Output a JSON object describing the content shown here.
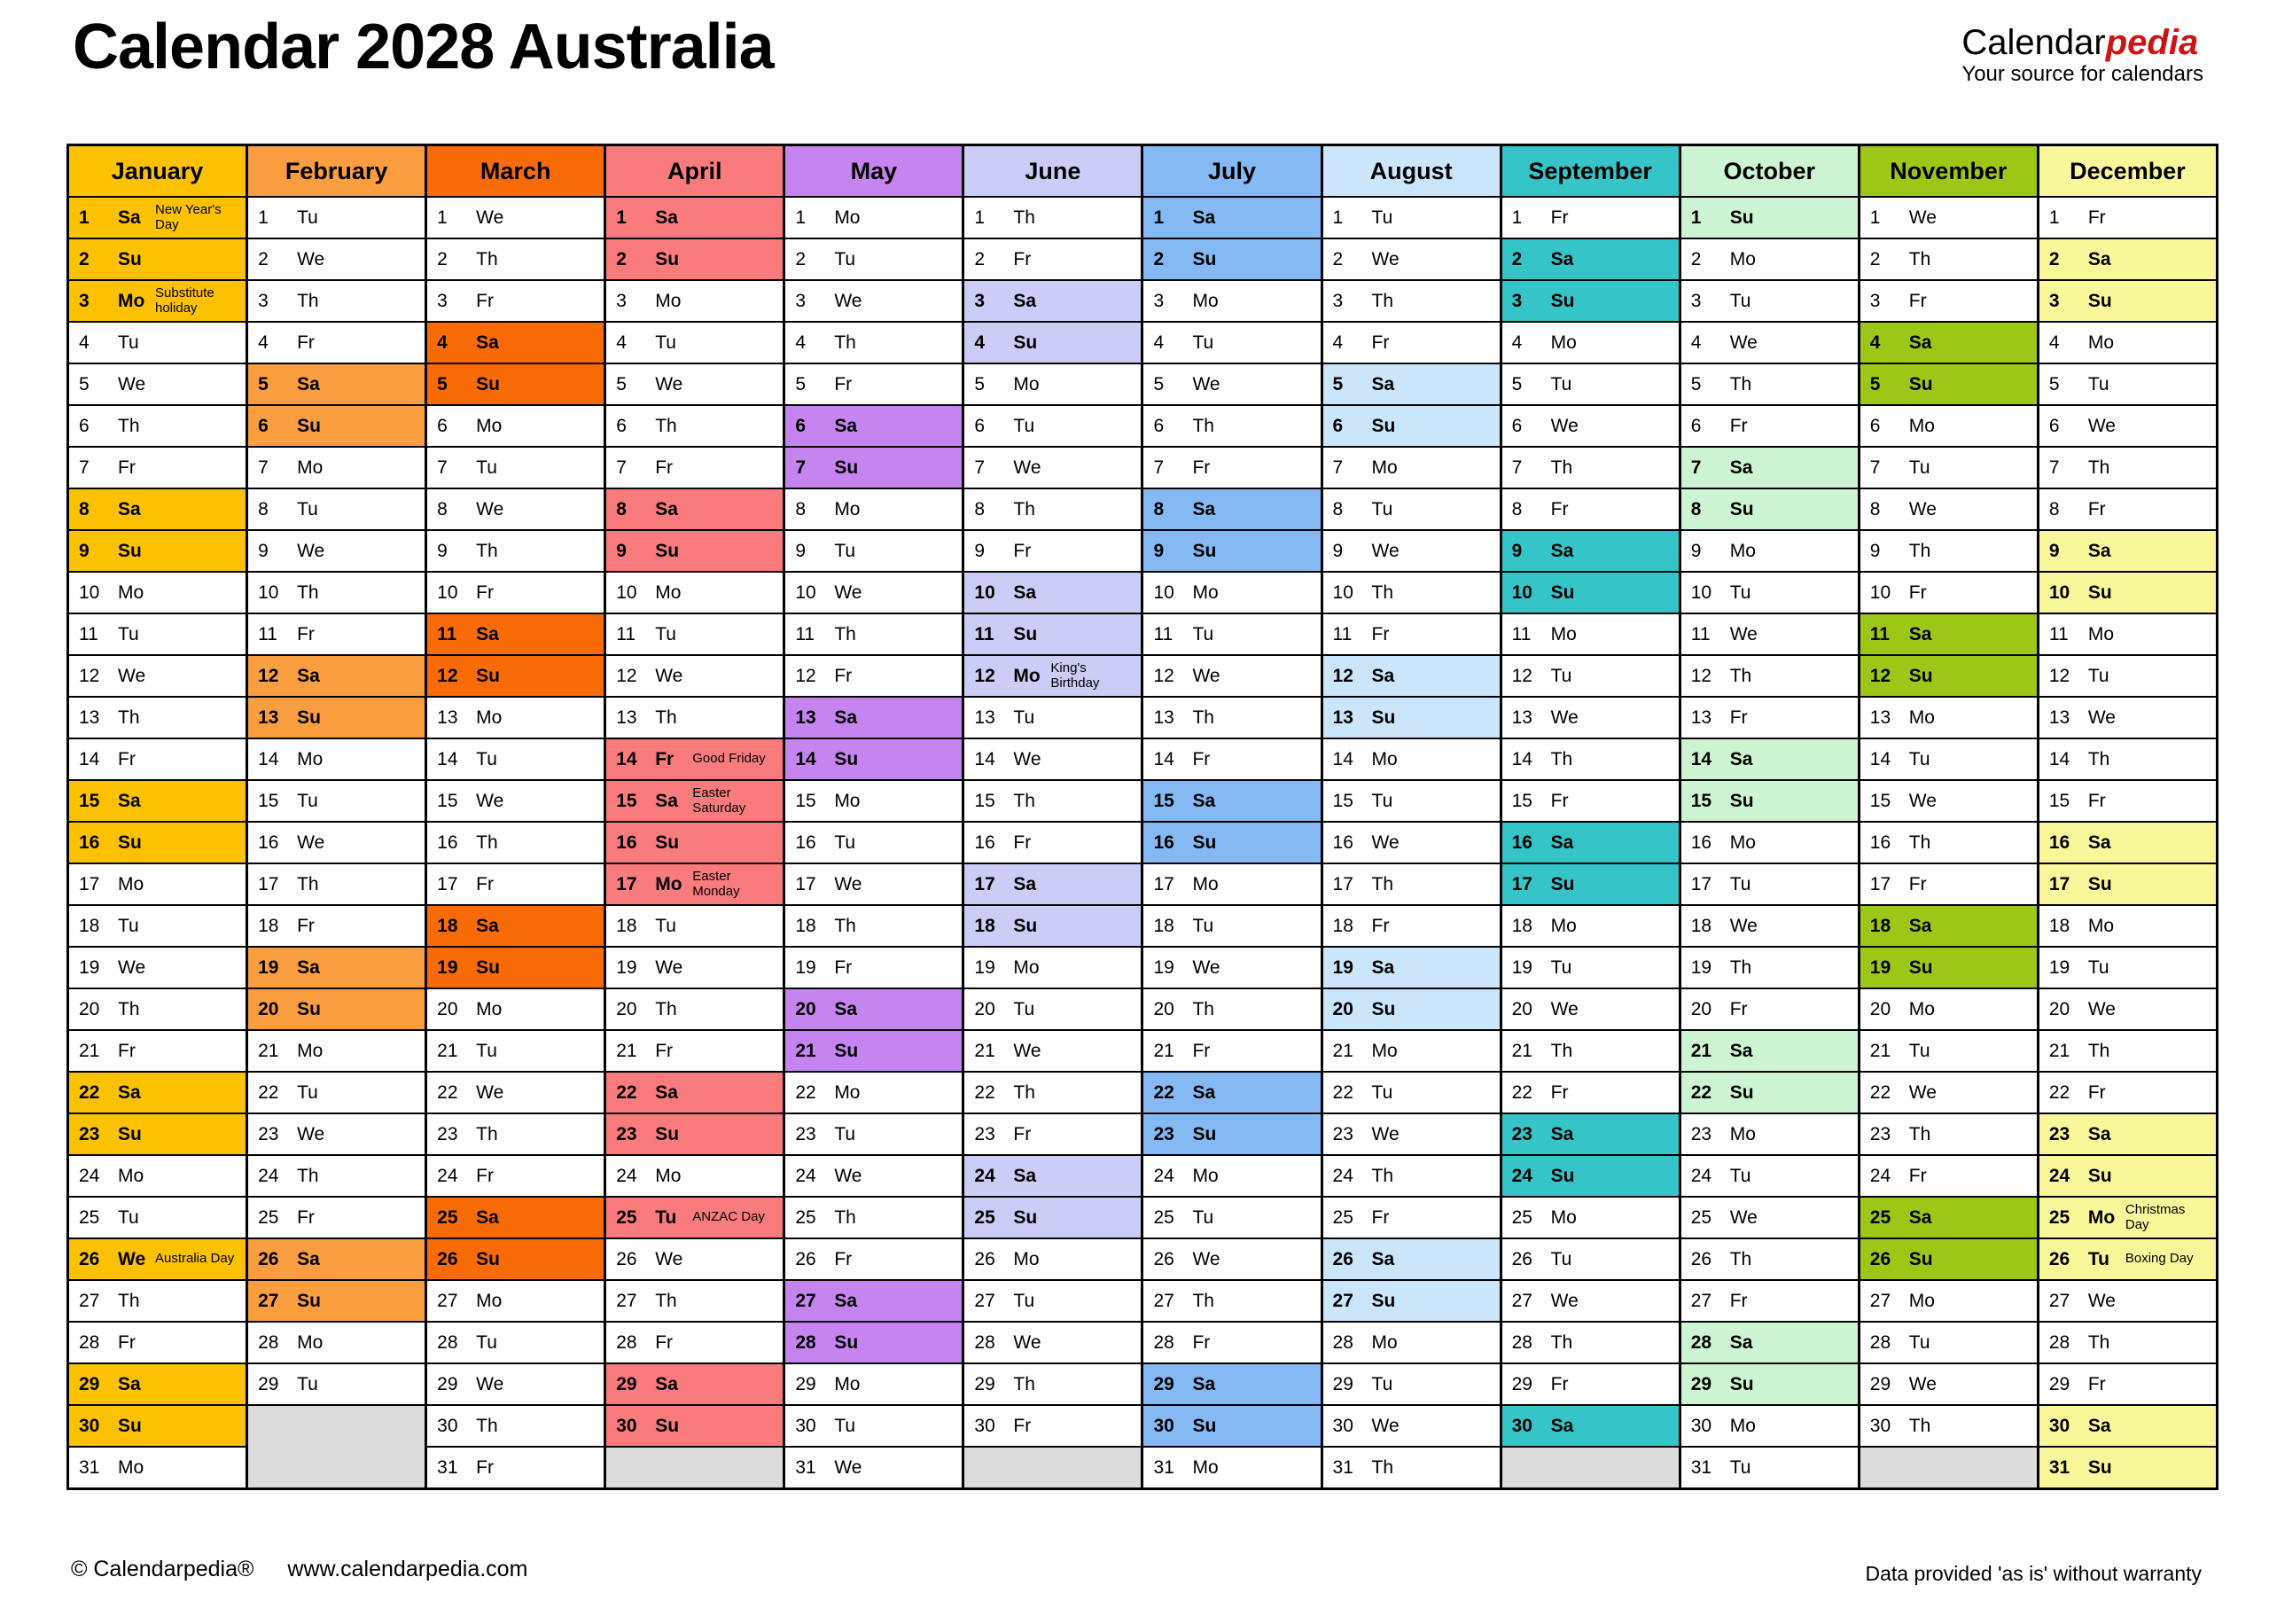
{
  "header": {
    "title": "Calendar 2028 Australia",
    "logo": {
      "part1": "Calendar",
      "part2": "pedia",
      "tagline": "Your source for calendars"
    }
  },
  "footer": {
    "copyright": "© Calendarpedia®",
    "website": "www.calendarpedia.com",
    "disclaimer": "Data provided 'as is' without warranty"
  },
  "colors": {
    "filler": "#DCDCDC",
    "grid": "#000000",
    "logo_red": "#CC1414",
    "weekday_cell": "#FFFFFF"
  },
  "months": [
    {
      "name": "January",
      "color": "#FCC101",
      "days": [
        [
          1,
          "Sa",
          "New Year's Day"
        ],
        [
          2,
          "Su"
        ],
        [
          3,
          "Mo",
          "Substitute holiday"
        ],
        [
          4,
          "Tu"
        ],
        [
          5,
          "We"
        ],
        [
          6,
          "Th"
        ],
        [
          7,
          "Fr"
        ],
        [
          8,
          "Sa"
        ],
        [
          9,
          "Su"
        ],
        [
          10,
          "Mo"
        ],
        [
          11,
          "Tu"
        ],
        [
          12,
          "We"
        ],
        [
          13,
          "Th"
        ],
        [
          14,
          "Fr"
        ],
        [
          15,
          "Sa"
        ],
        [
          16,
          "Su"
        ],
        [
          17,
          "Mo"
        ],
        [
          18,
          "Tu"
        ],
        [
          19,
          "We"
        ],
        [
          20,
          "Th"
        ],
        [
          21,
          "Fr"
        ],
        [
          22,
          "Sa"
        ],
        [
          23,
          "Su"
        ],
        [
          24,
          "Mo"
        ],
        [
          25,
          "Tu"
        ],
        [
          26,
          "We",
          "Australia Day"
        ],
        [
          27,
          "Th"
        ],
        [
          28,
          "Fr"
        ],
        [
          29,
          "Sa"
        ],
        [
          30,
          "Su"
        ],
        [
          31,
          "Mo"
        ]
      ]
    },
    {
      "name": "February",
      "color": "#FA9E40",
      "days": [
        [
          1,
          "Tu"
        ],
        [
          2,
          "We"
        ],
        [
          3,
          "Th"
        ],
        [
          4,
          "Fr"
        ],
        [
          5,
          "Sa"
        ],
        [
          6,
          "Su"
        ],
        [
          7,
          "Mo"
        ],
        [
          8,
          "Tu"
        ],
        [
          9,
          "We"
        ],
        [
          10,
          "Th"
        ],
        [
          11,
          "Fr"
        ],
        [
          12,
          "Sa"
        ],
        [
          13,
          "Su"
        ],
        [
          14,
          "Mo"
        ],
        [
          15,
          "Tu"
        ],
        [
          16,
          "We"
        ],
        [
          17,
          "Th"
        ],
        [
          18,
          "Fr"
        ],
        [
          19,
          "Sa"
        ],
        [
          20,
          "Su"
        ],
        [
          21,
          "Mo"
        ],
        [
          22,
          "Tu"
        ],
        [
          23,
          "We"
        ],
        [
          24,
          "Th"
        ],
        [
          25,
          "Fr"
        ],
        [
          26,
          "Sa"
        ],
        [
          27,
          "Su"
        ],
        [
          28,
          "Mo"
        ],
        [
          29,
          "Tu"
        ]
      ]
    },
    {
      "name": "March",
      "color": "#F96B07",
      "days": [
        [
          1,
          "We"
        ],
        [
          2,
          "Th"
        ],
        [
          3,
          "Fr"
        ],
        [
          4,
          "Sa"
        ],
        [
          5,
          "Su"
        ],
        [
          6,
          "Mo"
        ],
        [
          7,
          "Tu"
        ],
        [
          8,
          "We"
        ],
        [
          9,
          "Th"
        ],
        [
          10,
          "Fr"
        ],
        [
          11,
          "Sa"
        ],
        [
          12,
          "Su"
        ],
        [
          13,
          "Mo"
        ],
        [
          14,
          "Tu"
        ],
        [
          15,
          "We"
        ],
        [
          16,
          "Th"
        ],
        [
          17,
          "Fr"
        ],
        [
          18,
          "Sa"
        ],
        [
          19,
          "Su"
        ],
        [
          20,
          "Mo"
        ],
        [
          21,
          "Tu"
        ],
        [
          22,
          "We"
        ],
        [
          23,
          "Th"
        ],
        [
          24,
          "Fr"
        ],
        [
          25,
          "Sa"
        ],
        [
          26,
          "Su"
        ],
        [
          27,
          "Mo"
        ],
        [
          28,
          "Tu"
        ],
        [
          29,
          "We"
        ],
        [
          30,
          "Th"
        ],
        [
          31,
          "Fr"
        ]
      ]
    },
    {
      "name": "April",
      "color": "#FA7B7D",
      "days": [
        [
          1,
          "Sa"
        ],
        [
          2,
          "Su"
        ],
        [
          3,
          "Mo"
        ],
        [
          4,
          "Tu"
        ],
        [
          5,
          "We"
        ],
        [
          6,
          "Th"
        ],
        [
          7,
          "Fr"
        ],
        [
          8,
          "Sa"
        ],
        [
          9,
          "Su"
        ],
        [
          10,
          "Mo"
        ],
        [
          11,
          "Tu"
        ],
        [
          12,
          "We"
        ],
        [
          13,
          "Th"
        ],
        [
          14,
          "Fr",
          "Good Friday"
        ],
        [
          15,
          "Sa",
          "Easter Saturday"
        ],
        [
          16,
          "Su"
        ],
        [
          17,
          "Mo",
          "Easter Monday"
        ],
        [
          18,
          "Tu"
        ],
        [
          19,
          "We"
        ],
        [
          20,
          "Th"
        ],
        [
          21,
          "Fr"
        ],
        [
          22,
          "Sa"
        ],
        [
          23,
          "Su"
        ],
        [
          24,
          "Mo"
        ],
        [
          25,
          "Tu",
          "ANZAC Day"
        ],
        [
          26,
          "We"
        ],
        [
          27,
          "Th"
        ],
        [
          28,
          "Fr"
        ],
        [
          29,
          "Sa"
        ],
        [
          30,
          "Su"
        ]
      ]
    },
    {
      "name": "May",
      "color": "#C584F0",
      "days": [
        [
          1,
          "Mo"
        ],
        [
          2,
          "Tu"
        ],
        [
          3,
          "We"
        ],
        [
          4,
          "Th"
        ],
        [
          5,
          "Fr"
        ],
        [
          6,
          "Sa"
        ],
        [
          7,
          "Su"
        ],
        [
          8,
          "Mo"
        ],
        [
          9,
          "Tu"
        ],
        [
          10,
          "We"
        ],
        [
          11,
          "Th"
        ],
        [
          12,
          "Fr"
        ],
        [
          13,
          "Sa"
        ],
        [
          14,
          "Su"
        ],
        [
          15,
          "Mo"
        ],
        [
          16,
          "Tu"
        ],
        [
          17,
          "We"
        ],
        [
          18,
          "Th"
        ],
        [
          19,
          "Fr"
        ],
        [
          20,
          "Sa"
        ],
        [
          21,
          "Su"
        ],
        [
          22,
          "Mo"
        ],
        [
          23,
          "Tu"
        ],
        [
          24,
          "We"
        ],
        [
          25,
          "Th"
        ],
        [
          26,
          "Fr"
        ],
        [
          27,
          "Sa"
        ],
        [
          28,
          "Su"
        ],
        [
          29,
          "Mo"
        ],
        [
          30,
          "Tu"
        ],
        [
          31,
          "We"
        ]
      ]
    },
    {
      "name": "June",
      "color": "#CCCDF6",
      "days": [
        [
          1,
          "Th"
        ],
        [
          2,
          "Fr"
        ],
        [
          3,
          "Sa"
        ],
        [
          4,
          "Su"
        ],
        [
          5,
          "Mo"
        ],
        [
          6,
          "Tu"
        ],
        [
          7,
          "We"
        ],
        [
          8,
          "Th"
        ],
        [
          9,
          "Fr"
        ],
        [
          10,
          "Sa"
        ],
        [
          11,
          "Su"
        ],
        [
          12,
          "Mo",
          "King's Birthday"
        ],
        [
          13,
          "Tu"
        ],
        [
          14,
          "We"
        ],
        [
          15,
          "Th"
        ],
        [
          16,
          "Fr"
        ],
        [
          17,
          "Sa"
        ],
        [
          18,
          "Su"
        ],
        [
          19,
          "Mo"
        ],
        [
          20,
          "Tu"
        ],
        [
          21,
          "We"
        ],
        [
          22,
          "Th"
        ],
        [
          23,
          "Fr"
        ],
        [
          24,
          "Sa"
        ],
        [
          25,
          "Su"
        ],
        [
          26,
          "Mo"
        ],
        [
          27,
          "Tu"
        ],
        [
          28,
          "We"
        ],
        [
          29,
          "Th"
        ],
        [
          30,
          "Fr"
        ]
      ]
    },
    {
      "name": "July",
      "color": "#85B9F3",
      "days": [
        [
          1,
          "Sa"
        ],
        [
          2,
          "Su"
        ],
        [
          3,
          "Mo"
        ],
        [
          4,
          "Tu"
        ],
        [
          5,
          "We"
        ],
        [
          6,
          "Th"
        ],
        [
          7,
          "Fr"
        ],
        [
          8,
          "Sa"
        ],
        [
          9,
          "Su"
        ],
        [
          10,
          "Mo"
        ],
        [
          11,
          "Tu"
        ],
        [
          12,
          "We"
        ],
        [
          13,
          "Th"
        ],
        [
          14,
          "Fr"
        ],
        [
          15,
          "Sa"
        ],
        [
          16,
          "Su"
        ],
        [
          17,
          "Mo"
        ],
        [
          18,
          "Tu"
        ],
        [
          19,
          "We"
        ],
        [
          20,
          "Th"
        ],
        [
          21,
          "Fr"
        ],
        [
          22,
          "Sa"
        ],
        [
          23,
          "Su"
        ],
        [
          24,
          "Mo"
        ],
        [
          25,
          "Tu"
        ],
        [
          26,
          "We"
        ],
        [
          27,
          "Th"
        ],
        [
          28,
          "Fr"
        ],
        [
          29,
          "Sa"
        ],
        [
          30,
          "Su"
        ],
        [
          31,
          "Mo"
        ]
      ]
    },
    {
      "name": "August",
      "color": "#CBE6FA",
      "days": [
        [
          1,
          "Tu"
        ],
        [
          2,
          "We"
        ],
        [
          3,
          "Th"
        ],
        [
          4,
          "Fr"
        ],
        [
          5,
          "Sa"
        ],
        [
          6,
          "Su"
        ],
        [
          7,
          "Mo"
        ],
        [
          8,
          "Tu"
        ],
        [
          9,
          "We"
        ],
        [
          10,
          "Th"
        ],
        [
          11,
          "Fr"
        ],
        [
          12,
          "Sa"
        ],
        [
          13,
          "Su"
        ],
        [
          14,
          "Mo"
        ],
        [
          15,
          "Tu"
        ],
        [
          16,
          "We"
        ],
        [
          17,
          "Th"
        ],
        [
          18,
          "Fr"
        ],
        [
          19,
          "Sa"
        ],
        [
          20,
          "Su"
        ],
        [
          21,
          "Mo"
        ],
        [
          22,
          "Tu"
        ],
        [
          23,
          "We"
        ],
        [
          24,
          "Th"
        ],
        [
          25,
          "Fr"
        ],
        [
          26,
          "Sa"
        ],
        [
          27,
          "Su"
        ],
        [
          28,
          "Mo"
        ],
        [
          29,
          "Tu"
        ],
        [
          30,
          "We"
        ],
        [
          31,
          "Th"
        ]
      ]
    },
    {
      "name": "September",
      "color": "#35C4C8",
      "days": [
        [
          1,
          "Fr"
        ],
        [
          2,
          "Sa"
        ],
        [
          3,
          "Su"
        ],
        [
          4,
          "Mo"
        ],
        [
          5,
          "Tu"
        ],
        [
          6,
          "We"
        ],
        [
          7,
          "Th"
        ],
        [
          8,
          "Fr"
        ],
        [
          9,
          "Sa"
        ],
        [
          10,
          "Su"
        ],
        [
          11,
          "Mo"
        ],
        [
          12,
          "Tu"
        ],
        [
          13,
          "We"
        ],
        [
          14,
          "Th"
        ],
        [
          15,
          "Fr"
        ],
        [
          16,
          "Sa"
        ],
        [
          17,
          "Su"
        ],
        [
          18,
          "Mo"
        ],
        [
          19,
          "Tu"
        ],
        [
          20,
          "We"
        ],
        [
          21,
          "Th"
        ],
        [
          22,
          "Fr"
        ],
        [
          23,
          "Sa"
        ],
        [
          24,
          "Su"
        ],
        [
          25,
          "Mo"
        ],
        [
          26,
          "Tu"
        ],
        [
          27,
          "We"
        ],
        [
          28,
          "Th"
        ],
        [
          29,
          "Fr"
        ],
        [
          30,
          "Sa"
        ]
      ]
    },
    {
      "name": "October",
      "color": "#CDF4D3",
      "days": [
        [
          1,
          "Su"
        ],
        [
          2,
          "Mo"
        ],
        [
          3,
          "Tu"
        ],
        [
          4,
          "We"
        ],
        [
          5,
          "Th"
        ],
        [
          6,
          "Fr"
        ],
        [
          7,
          "Sa"
        ],
        [
          8,
          "Su"
        ],
        [
          9,
          "Mo"
        ],
        [
          10,
          "Tu"
        ],
        [
          11,
          "We"
        ],
        [
          12,
          "Th"
        ],
        [
          13,
          "Fr"
        ],
        [
          14,
          "Sa"
        ],
        [
          15,
          "Su"
        ],
        [
          16,
          "Mo"
        ],
        [
          17,
          "Tu"
        ],
        [
          18,
          "We"
        ],
        [
          19,
          "Th"
        ],
        [
          20,
          "Fr"
        ],
        [
          21,
          "Sa"
        ],
        [
          22,
          "Su"
        ],
        [
          23,
          "Mo"
        ],
        [
          24,
          "Tu"
        ],
        [
          25,
          "We"
        ],
        [
          26,
          "Th"
        ],
        [
          27,
          "Fr"
        ],
        [
          28,
          "Sa"
        ],
        [
          29,
          "Su"
        ],
        [
          30,
          "Mo"
        ],
        [
          31,
          "Tu"
        ]
      ]
    },
    {
      "name": "November",
      "color": "#9DC717",
      "days": [
        [
          1,
          "We"
        ],
        [
          2,
          "Th"
        ],
        [
          3,
          "Fr"
        ],
        [
          4,
          "Sa"
        ],
        [
          5,
          "Su"
        ],
        [
          6,
          "Mo"
        ],
        [
          7,
          "Tu"
        ],
        [
          8,
          "We"
        ],
        [
          9,
          "Th"
        ],
        [
          10,
          "Fr"
        ],
        [
          11,
          "Sa"
        ],
        [
          12,
          "Su"
        ],
        [
          13,
          "Mo"
        ],
        [
          14,
          "Tu"
        ],
        [
          15,
          "We"
        ],
        [
          16,
          "Th"
        ],
        [
          17,
          "Fr"
        ],
        [
          18,
          "Sa"
        ],
        [
          19,
          "Su"
        ],
        [
          20,
          "Mo"
        ],
        [
          21,
          "Tu"
        ],
        [
          22,
          "We"
        ],
        [
          23,
          "Th"
        ],
        [
          24,
          "Fr"
        ],
        [
          25,
          "Sa"
        ],
        [
          26,
          "Su"
        ],
        [
          27,
          "Mo"
        ],
        [
          28,
          "Tu"
        ],
        [
          29,
          "We"
        ],
        [
          30,
          "Th"
        ]
      ]
    },
    {
      "name": "December",
      "color": "#F8F89B",
      "days": [
        [
          1,
          "Fr"
        ],
        [
          2,
          "Sa"
        ],
        [
          3,
          "Su"
        ],
        [
          4,
          "Mo"
        ],
        [
          5,
          "Tu"
        ],
        [
          6,
          "We"
        ],
        [
          7,
          "Th"
        ],
        [
          8,
          "Fr"
        ],
        [
          9,
          "Sa"
        ],
        [
          10,
          "Su"
        ],
        [
          11,
          "Mo"
        ],
        [
          12,
          "Tu"
        ],
        [
          13,
          "We"
        ],
        [
          14,
          "Th"
        ],
        [
          15,
          "Fr"
        ],
        [
          16,
          "Sa"
        ],
        [
          17,
          "Su"
        ],
        [
          18,
          "Mo"
        ],
        [
          19,
          "Tu"
        ],
        [
          20,
          "We"
        ],
        [
          21,
          "Th"
        ],
        [
          22,
          "Fr"
        ],
        [
          23,
          "Sa"
        ],
        [
          24,
          "Su"
        ],
        [
          25,
          "Mo",
          "Christmas Day"
        ],
        [
          26,
          "Tu",
          "Boxing Day"
        ],
        [
          27,
          "We"
        ],
        [
          28,
          "Th"
        ],
        [
          29,
          "Fr"
        ],
        [
          30,
          "Sa"
        ],
        [
          31,
          "Su"
        ]
      ]
    }
  ]
}
